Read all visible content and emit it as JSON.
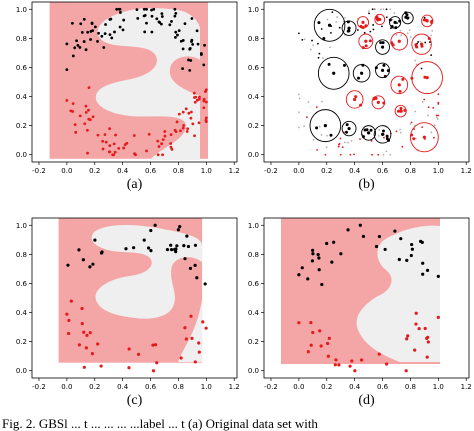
{
  "figure": {
    "caption_fragment": "Fig. 2.   GBSl  ... t  ...   ...  ...  ...label  ...  t  (a) Original data set with"
  },
  "chart_data": [
    {
      "type": "scatter",
      "panel_label": "(a)",
      "xlim": [
        -0.25,
        1.22
      ],
      "ylim": [
        -0.05,
        1.05
      ],
      "xticks": [
        "-0.2",
        "0.0",
        "0.2",
        "0.4",
        "0.6",
        "0.8",
        "1.0",
        "1.2"
      ],
      "yticks": [
        "0.0",
        "0.2",
        "0.4",
        "0.6",
        "0.8",
        "1.0"
      ],
      "colors": {
        "class0": "#000000",
        "class1": "#e41a1c",
        "bg_region0": "#f4a6a6",
        "bg_region1": "#efefef"
      },
      "density": "dense",
      "seed": 11
    },
    {
      "type": "scatter",
      "panel_label": "(b)",
      "xlim": [
        -0.25,
        1.22
      ],
      "ylim": [
        -0.05,
        1.05
      ],
      "xticks": [
        "-0.2",
        "0.0",
        "0.2",
        "0.4",
        "0.6",
        "0.8",
        "1.0",
        "1.2"
      ],
      "yticks": [
        "0.0",
        "0.2",
        "0.4",
        "0.6",
        "0.8",
        "1.0"
      ],
      "colors": {
        "class0": "#000000",
        "class1": "#e41a1c",
        "faint": "#b0b0b0"
      },
      "balls": [
        {
          "x": 0.22,
          "y": 0.89,
          "r": 0.11,
          "c": 0
        },
        {
          "x": 0.36,
          "y": 0.87,
          "r": 0.05,
          "c": 0
        },
        {
          "x": 0.46,
          "y": 0.91,
          "r": 0.04,
          "c": 1
        },
        {
          "x": 0.58,
          "y": 0.93,
          "r": 0.035,
          "c": 1
        },
        {
          "x": 0.69,
          "y": 0.91,
          "r": 0.04,
          "c": 0
        },
        {
          "x": 0.78,
          "y": 0.94,
          "r": 0.04,
          "c": 0
        },
        {
          "x": 0.92,
          "y": 0.92,
          "r": 0.04,
          "c": 1
        },
        {
          "x": 0.48,
          "y": 0.78,
          "r": 0.05,
          "c": 1
        },
        {
          "x": 0.6,
          "y": 0.74,
          "r": 0.05,
          "c": 0
        },
        {
          "x": 0.72,
          "y": 0.78,
          "r": 0.06,
          "c": 1
        },
        {
          "x": 0.88,
          "y": 0.76,
          "r": 0.07,
          "c": 1
        },
        {
          "x": 0.25,
          "y": 0.56,
          "r": 0.11,
          "c": 0
        },
        {
          "x": 0.45,
          "y": 0.56,
          "r": 0.06,
          "c": 0
        },
        {
          "x": 0.6,
          "y": 0.58,
          "r": 0.05,
          "c": 0
        },
        {
          "x": 0.72,
          "y": 0.48,
          "r": 0.06,
          "c": 1
        },
        {
          "x": 0.92,
          "y": 0.53,
          "r": 0.11,
          "c": 1
        },
        {
          "x": 0.4,
          "y": 0.38,
          "r": 0.06,
          "c": 1
        },
        {
          "x": 0.57,
          "y": 0.36,
          "r": 0.045,
          "c": 1
        },
        {
          "x": 0.19,
          "y": 0.2,
          "r": 0.11,
          "c": 0
        },
        {
          "x": 0.36,
          "y": 0.18,
          "r": 0.05,
          "c": 0
        },
        {
          "x": 0.5,
          "y": 0.15,
          "r": 0.05,
          "c": 0
        },
        {
          "x": 0.6,
          "y": 0.14,
          "r": 0.06,
          "c": 0
        },
        {
          "x": 0.9,
          "y": 0.12,
          "r": 0.1,
          "c": 1
        },
        {
          "x": 0.73,
          "y": 0.3,
          "r": 0.04,
          "c": 1
        }
      ],
      "seed": 23
    },
    {
      "type": "scatter",
      "panel_label": "(c)",
      "xlim": [
        -0.25,
        1.22
      ],
      "ylim": [
        -0.05,
        1.05
      ],
      "xticks": [
        "-0.2",
        "0.0",
        "0.2",
        "0.4",
        "0.6",
        "0.8",
        "1.0",
        "1.2"
      ],
      "yticks": [
        "0.0",
        "0.2",
        "0.4",
        "0.6",
        "0.8",
        "1.0"
      ],
      "colors": {
        "class0": "#000000",
        "class1": "#e41a1c",
        "bg_region0": "#f4a6a6",
        "bg_region1": "#efefef"
      },
      "density": "sparse",
      "seed": 37
    },
    {
      "type": "scatter",
      "panel_label": "(d)",
      "xlim": [
        -0.25,
        1.22
      ],
      "ylim": [
        -0.05,
        1.05
      ],
      "xticks": [
        "-0.2",
        "0.0",
        "0.2",
        "0.4",
        "0.6",
        "0.8",
        "1.0",
        "1.2"
      ],
      "yticks": [
        "0.0",
        "0.2",
        "0.4",
        "0.6",
        "0.8",
        "1.0"
      ],
      "colors": {
        "class0": "#000000",
        "class1": "#e41a1c",
        "bg_region0": "#f4a6a6",
        "bg_region1": "#efefef"
      },
      "density": "sparse",
      "seed": 53
    }
  ]
}
